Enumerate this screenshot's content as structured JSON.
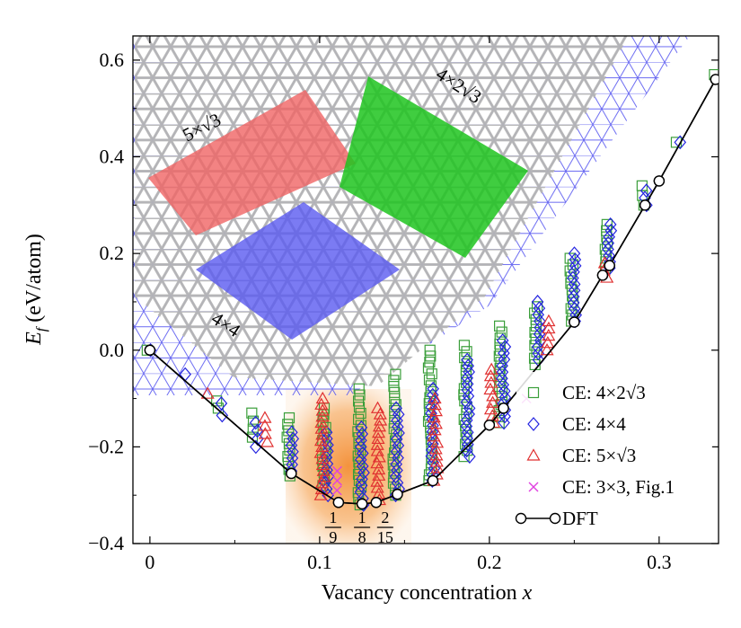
{
  "chart_data": {
    "type": "scatter",
    "xlabel": "Vacancy concentration x",
    "ylabel": "E_f (eV/atom)",
    "xlim": [
      -0.01,
      0.335
    ],
    "ylim": [
      -0.4,
      0.65
    ],
    "x_ticks": [
      0,
      0.1,
      0.2,
      0.3
    ],
    "x_tick_labels": [
      "0",
      "0.1",
      "0.2",
      "0.3"
    ],
    "y_ticks": [
      -0.4,
      -0.2,
      0.0,
      0.2,
      0.4,
      0.6
    ],
    "y_tick_labels": [
      "−0.4",
      "−0.2",
      "0.0",
      "0.2",
      "0.4",
      "0.6"
    ],
    "legend_position": "right",
    "highlight_band": {
      "x_range": [
        0.09,
        0.16
      ],
      "color": "#f7a85b"
    },
    "fraction_labels": [
      {
        "num": "1",
        "den": "9",
        "x": 0.1111
      },
      {
        "num": "1",
        "den": "8",
        "x": 0.125
      },
      {
        "num": "2",
        "den": "15",
        "x": 0.1333
      }
    ],
    "inset_labels": {
      "cell_5x_root3": "5×√3",
      "cell_4x2root3": "4×2√3",
      "cell_4x4": "4×4"
    },
    "series": [
      {
        "name": "CE: 4×2√3",
        "marker": "square",
        "color": "#3a9e3a",
        "clusters": [
          {
            "x": 0.0,
            "ymin": 0.0,
            "ymax": 0.0
          },
          {
            "x": 0.0417,
            "ymin": -0.12,
            "ymax": -0.105
          },
          {
            "x": 0.0625,
            "ymin": -0.18,
            "ymax": -0.13
          },
          {
            "x": 0.0833,
            "ymin": -0.26,
            "ymax": -0.14
          },
          {
            "x": 0.1042,
            "ymin": -0.28,
            "ymax": -0.12
          },
          {
            "x": 0.125,
            "ymin": -0.32,
            "ymax": -0.08
          },
          {
            "x": 0.1458,
            "ymin": -0.3,
            "ymax": -0.05
          },
          {
            "x": 0.1667,
            "ymin": -0.27,
            "ymax": 0.0
          },
          {
            "x": 0.1875,
            "ymin": -0.22,
            "ymax": 0.01
          },
          {
            "x": 0.2083,
            "ymin": -0.15,
            "ymax": 0.05
          },
          {
            "x": 0.2292,
            "ymin": -0.03,
            "ymax": 0.09
          },
          {
            "x": 0.25,
            "ymin": 0.06,
            "ymax": 0.19
          },
          {
            "x": 0.2708,
            "ymin": 0.17,
            "ymax": 0.26
          },
          {
            "x": 0.2917,
            "ymin": 0.3,
            "ymax": 0.34
          },
          {
            "x": 0.3125,
            "ymin": 0.43,
            "ymax": 0.43
          },
          {
            "x": 0.3333,
            "ymin": 0.57,
            "ymax": 0.57
          }
        ]
      },
      {
        "name": "CE: 4×4",
        "marker": "diamond",
        "color": "#2323e0",
        "clusters": [
          {
            "x": 0.0,
            "ymin": 0.0,
            "ymax": 0.0
          },
          {
            "x": 0.0208,
            "ymin": -0.05,
            "ymax": -0.05
          },
          {
            "x": 0.0417,
            "ymin": -0.135,
            "ymax": -0.11
          },
          {
            "x": 0.0625,
            "ymin": -0.2,
            "ymax": -0.15
          },
          {
            "x": 0.0833,
            "ymin": -0.25,
            "ymax": -0.17
          },
          {
            "x": 0.1042,
            "ymin": -0.3,
            "ymax": -0.17
          },
          {
            "x": 0.125,
            "ymin": -0.32,
            "ymax": -0.16
          },
          {
            "x": 0.1458,
            "ymin": -0.3,
            "ymax": -0.12
          },
          {
            "x": 0.1667,
            "ymin": -0.27,
            "ymax": -0.08
          },
          {
            "x": 0.1875,
            "ymin": -0.22,
            "ymax": -0.02
          },
          {
            "x": 0.2083,
            "ymin": -0.15,
            "ymax": 0.02
          },
          {
            "x": 0.2292,
            "ymin": -0.02,
            "ymax": 0.1
          },
          {
            "x": 0.25,
            "ymin": 0.06,
            "ymax": 0.2
          },
          {
            "x": 0.2708,
            "ymin": 0.17,
            "ymax": 0.26
          },
          {
            "x": 0.2917,
            "ymin": 0.3,
            "ymax": 0.33
          },
          {
            "x": 0.3125,
            "ymin": 0.43,
            "ymax": 0.43
          }
        ]
      },
      {
        "name": "CE: 5×√3",
        "marker": "triangle",
        "color": "#e03030",
        "clusters": [
          {
            "x": 0.0333,
            "ymin": -0.09,
            "ymax": -0.09
          },
          {
            "x": 0.0667,
            "ymin": -0.19,
            "ymax": -0.14
          },
          {
            "x": 0.1,
            "ymin": -0.3,
            "ymax": -0.1
          },
          {
            "x": 0.1333,
            "ymin": -0.31,
            "ymax": -0.12
          },
          {
            "x": 0.1667,
            "ymin": -0.27,
            "ymax": -0.1
          },
          {
            "x": 0.2,
            "ymin": -0.15,
            "ymax": -0.04
          },
          {
            "x": 0.2333,
            "ymin": 0.0,
            "ymax": 0.06
          },
          {
            "x": 0.2667,
            "ymin": 0.15,
            "ymax": 0.18
          }
        ]
      },
      {
        "name": "CE: 3×3, Fig.1",
        "marker": "x",
        "color": "#e040e0",
        "clusters": [
          {
            "x": 0.1111,
            "ymin": -0.29,
            "ymax": -0.25
          },
          {
            "x": 0.2222,
            "ymin": -0.1,
            "ymax": -0.1
          }
        ]
      },
      {
        "name": "DFT",
        "marker": "circle-line",
        "color": "#000000",
        "points": [
          [
            0.0,
            0.0
          ],
          [
            0.0833,
            -0.255
          ],
          [
            0.1111,
            -0.315
          ],
          [
            0.125,
            -0.318
          ],
          [
            0.1333,
            -0.315
          ],
          [
            0.1458,
            -0.298
          ],
          [
            0.1667,
            -0.27
          ],
          [
            0.2,
            -0.155
          ],
          [
            0.2083,
            -0.12
          ],
          [
            0.25,
            0.058
          ],
          [
            0.2667,
            0.155
          ],
          [
            0.2708,
            0.175
          ],
          [
            0.2917,
            0.3
          ],
          [
            0.3,
            0.35
          ],
          [
            0.3333,
            0.56
          ]
        ]
      }
    ]
  }
}
